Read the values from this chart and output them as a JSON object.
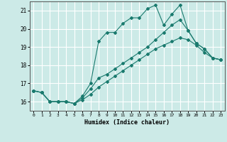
{
  "xlabel": "Humidex (Indice chaleur)",
  "background_color": "#cceae7",
  "grid_color": "#ffffff",
  "line_color": "#1a7a6e",
  "xlim": [
    -0.5,
    23.5
  ],
  "ylim": [
    15.5,
    21.5
  ],
  "yticks": [
    16,
    17,
    18,
    19,
    20,
    21
  ],
  "xticks": [
    0,
    1,
    2,
    3,
    4,
    5,
    6,
    7,
    8,
    9,
    10,
    11,
    12,
    13,
    14,
    15,
    16,
    17,
    18,
    19,
    20,
    21,
    22,
    23
  ],
  "series": [
    [
      16.6,
      16.5,
      16.0,
      16.0,
      16.0,
      15.9,
      16.3,
      17.0,
      19.3,
      19.8,
      19.8,
      20.3,
      20.6,
      20.6,
      21.1,
      21.3,
      20.2,
      20.8,
      21.3,
      19.9,
      19.2,
      18.9,
      18.4,
      18.3
    ],
    [
      16.6,
      16.5,
      16.0,
      16.0,
      16.0,
      15.9,
      16.2,
      16.7,
      17.3,
      17.5,
      17.8,
      18.1,
      18.4,
      18.7,
      19.0,
      19.4,
      19.8,
      20.2,
      20.5,
      19.9,
      19.2,
      18.9,
      18.4,
      18.3
    ],
    [
      16.6,
      16.5,
      16.0,
      16.0,
      16.0,
      15.9,
      16.1,
      16.4,
      16.8,
      17.1,
      17.4,
      17.7,
      18.0,
      18.3,
      18.6,
      18.9,
      19.1,
      19.3,
      19.5,
      19.4,
      19.1,
      18.7,
      18.4,
      18.3
    ]
  ]
}
